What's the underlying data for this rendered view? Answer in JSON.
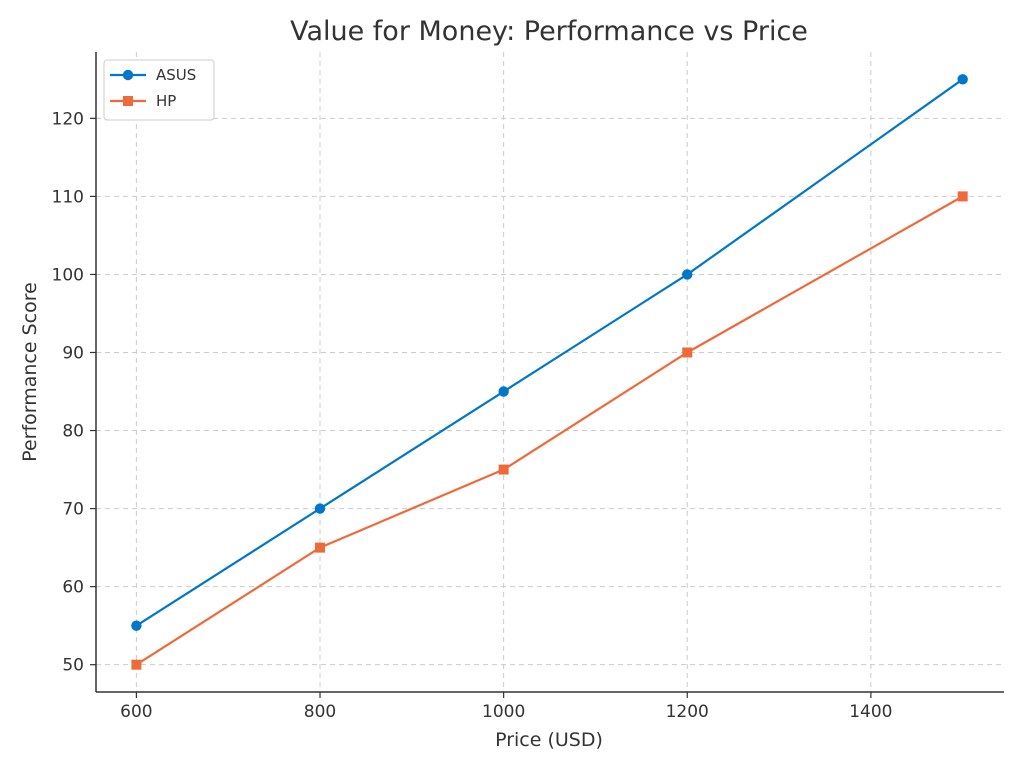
{
  "chart_data": {
    "type": "line",
    "title": "Value for Money: Performance vs Price",
    "xlabel": "Price (USD)",
    "ylabel": "Performance Score",
    "x": [
      600,
      800,
      1000,
      1200,
      1500
    ],
    "xlim": [
      556,
      1545
    ],
    "ylim": [
      46.5,
      128.5
    ],
    "xticks": [
      600,
      800,
      1000,
      1200,
      1400
    ],
    "yticks": [
      50,
      60,
      70,
      80,
      90,
      100,
      110,
      120
    ],
    "grid": true,
    "legend_position": "top-left",
    "series": [
      {
        "name": "ASUS",
        "values": [
          55,
          70,
          85,
          100,
          125
        ],
        "color": "#0077c8",
        "marker": "circle"
      },
      {
        "name": "HP",
        "values": [
          50,
          65,
          75,
          90,
          110
        ],
        "color": "#ee6a3a",
        "marker": "square"
      }
    ]
  }
}
